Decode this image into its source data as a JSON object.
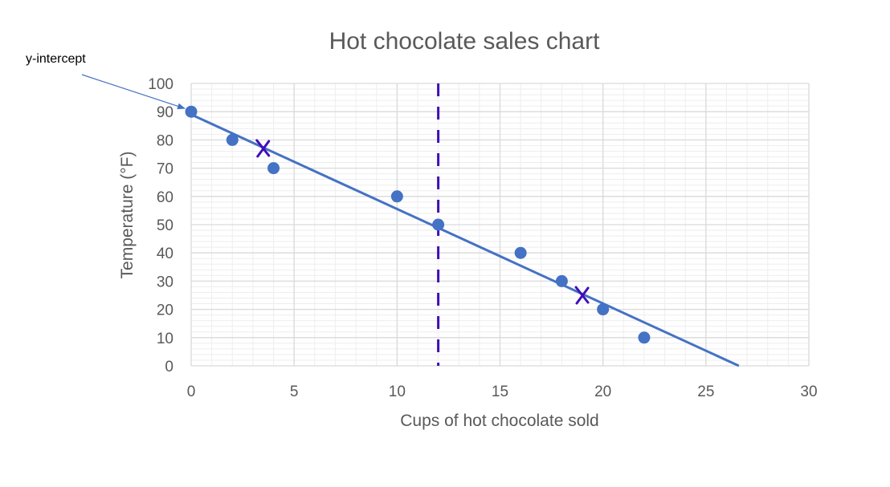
{
  "chart_data": {
    "type": "scatter",
    "title": "Hot chocolate sales chart",
    "xlabel": "Cups of hot chocolate sold",
    "ylabel": "Temperature (°F)",
    "xlim": [
      0,
      30
    ],
    "ylim": [
      0,
      100
    ],
    "x_ticks": [
      0,
      5,
      10,
      15,
      20,
      25,
      30
    ],
    "y_ticks": [
      0,
      10,
      20,
      30,
      40,
      50,
      60,
      70,
      80,
      90,
      100
    ],
    "grid": true,
    "points": [
      {
        "x": 0,
        "y": 90
      },
      {
        "x": 2,
        "y": 80
      },
      {
        "x": 4,
        "y": 70
      },
      {
        "x": 10,
        "y": 60
      },
      {
        "x": 12,
        "y": 50
      },
      {
        "x": 16,
        "y": 40
      },
      {
        "x": 18,
        "y": 30
      },
      {
        "x": 20,
        "y": 20
      },
      {
        "x": 22,
        "y": 10
      }
    ],
    "trendline": {
      "from": {
        "x": 0,
        "y": 89
      },
      "to": {
        "x": 26.6,
        "y": 0
      }
    },
    "vertical_dashed_line": {
      "x": 12
    },
    "cross_marks": [
      {
        "x": 3.5,
        "y": 77
      },
      {
        "x": 19,
        "y": 25
      }
    ],
    "annotation": {
      "text": "y-intercept",
      "target": {
        "x": 0,
        "y": 90
      }
    },
    "colors": {
      "points": "#4472C4",
      "trendline": "#4472C4",
      "dashed_line": "#3F0FB7",
      "marks": "#3F0FB7",
      "grid_major": "#D9D9D9",
      "grid_minor": "#EEEEEE",
      "text": "#595959"
    }
  }
}
